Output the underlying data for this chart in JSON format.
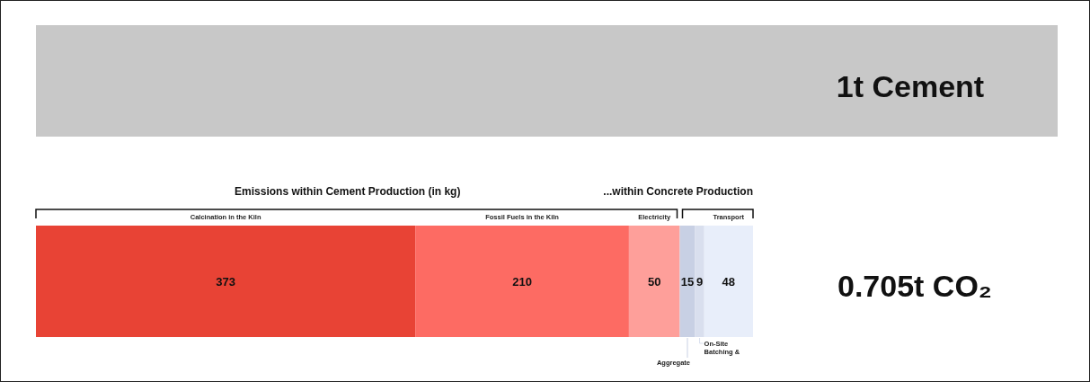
{
  "chart_data": {
    "type": "bar",
    "orientation": "horizontal",
    "stacked": true,
    "data_labels": true,
    "title": "1t Cement",
    "categories": [
      null
    ],
    "series": [
      {
        "name": "Calcination in the Kiln",
        "color": "#e84335",
        "values": [
          373
        ]
      },
      {
        "name": "Fossil Fuels in the Kiln",
        "color": "#fd6b63",
        "values": [
          210
        ]
      },
      {
        "name": "Electricity",
        "color": "#fe9f9a",
        "values": [
          50
        ]
      },
      {
        "name": "Aggregate",
        "color": "#c8d0e4",
        "values": [
          15
        ]
      },
      {
        "name": "On-Site Batching &",
        "color": "#d9dfee",
        "values": [
          9
        ]
      },
      {
        "name": "Transport",
        "color": "#e8eefa",
        "values": [
          48
        ]
      }
    ],
    "annotations": [
      "Emissions within Cement Production (in kg)",
      "...within Concrete Production",
      "0.705t CO₂"
    ]
  }
}
